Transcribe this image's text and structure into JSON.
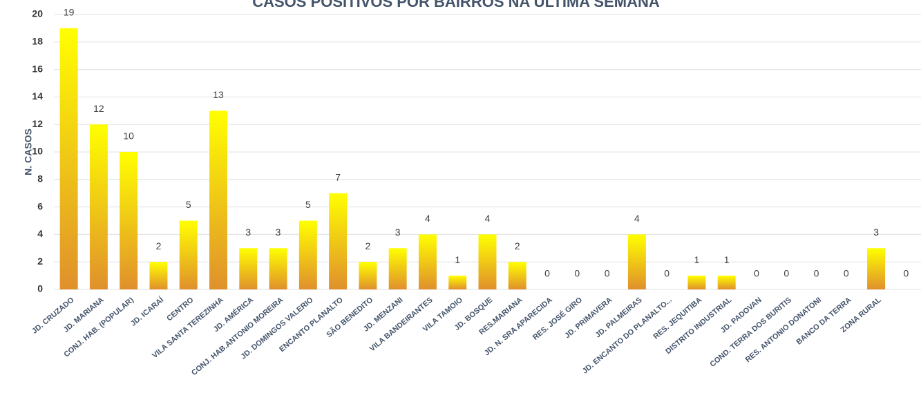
{
  "chart_data": {
    "type": "bar",
    "title": "CASOS POSITIVOS POR BAIRROS NA ÚLTIMA SEMANA",
    "y_label": "N. CASOS",
    "categories": [
      "JD. CRUZADO",
      "JD. MARIANA",
      "CONJ. HAB. (POPULAR)",
      "JD. ICARAÍ",
      "CENTRO",
      "VILA SANTA TEREZINHA",
      "JD. AMÉRICA",
      "CONJ. HAB.ANTONIO MOREIRA",
      "JD. DOMINGOS VALERIO",
      "ENCANTO PLANALTO",
      "SÃO BENEDITO",
      "JD. MENZANI",
      "VILA BANDEIRANTES",
      "VILA TAMOIO",
      "JD. BOSQUE",
      "RES.MARIANA",
      "JD. N. SRA APARECIDA",
      "RES. JOSÉ GIRO",
      "JD. PRIMAVERA",
      "JD. PALMEIRAS",
      "JD. ENCANTO DO PLANALTO...",
      "RES. JEQUITIBA",
      "DISTRITO INDUSTRIAL",
      "JD. PADOVAN",
      "COND. TERRA DOS BURITIS",
      "RES. ANTONIO DONATONI",
      "BANCO DA TERRA",
      "ZONA RURAL",
      null
    ],
    "values": [
      19,
      12,
      10,
      2,
      5,
      13,
      3,
      3,
      5,
      7,
      2,
      3,
      4,
      1,
      4,
      2,
      0,
      0,
      0,
      4,
      0,
      1,
      1,
      0,
      0,
      0,
      0,
      3,
      0
    ],
    "gradient": [
      "#ffff00",
      "#e0902c"
    ],
    "ylim": [
      0,
      20
    ],
    "yticks": [
      0,
      2,
      4,
      6,
      8,
      10,
      12,
      14,
      16,
      18,
      20
    ],
    "grid": true
  }
}
